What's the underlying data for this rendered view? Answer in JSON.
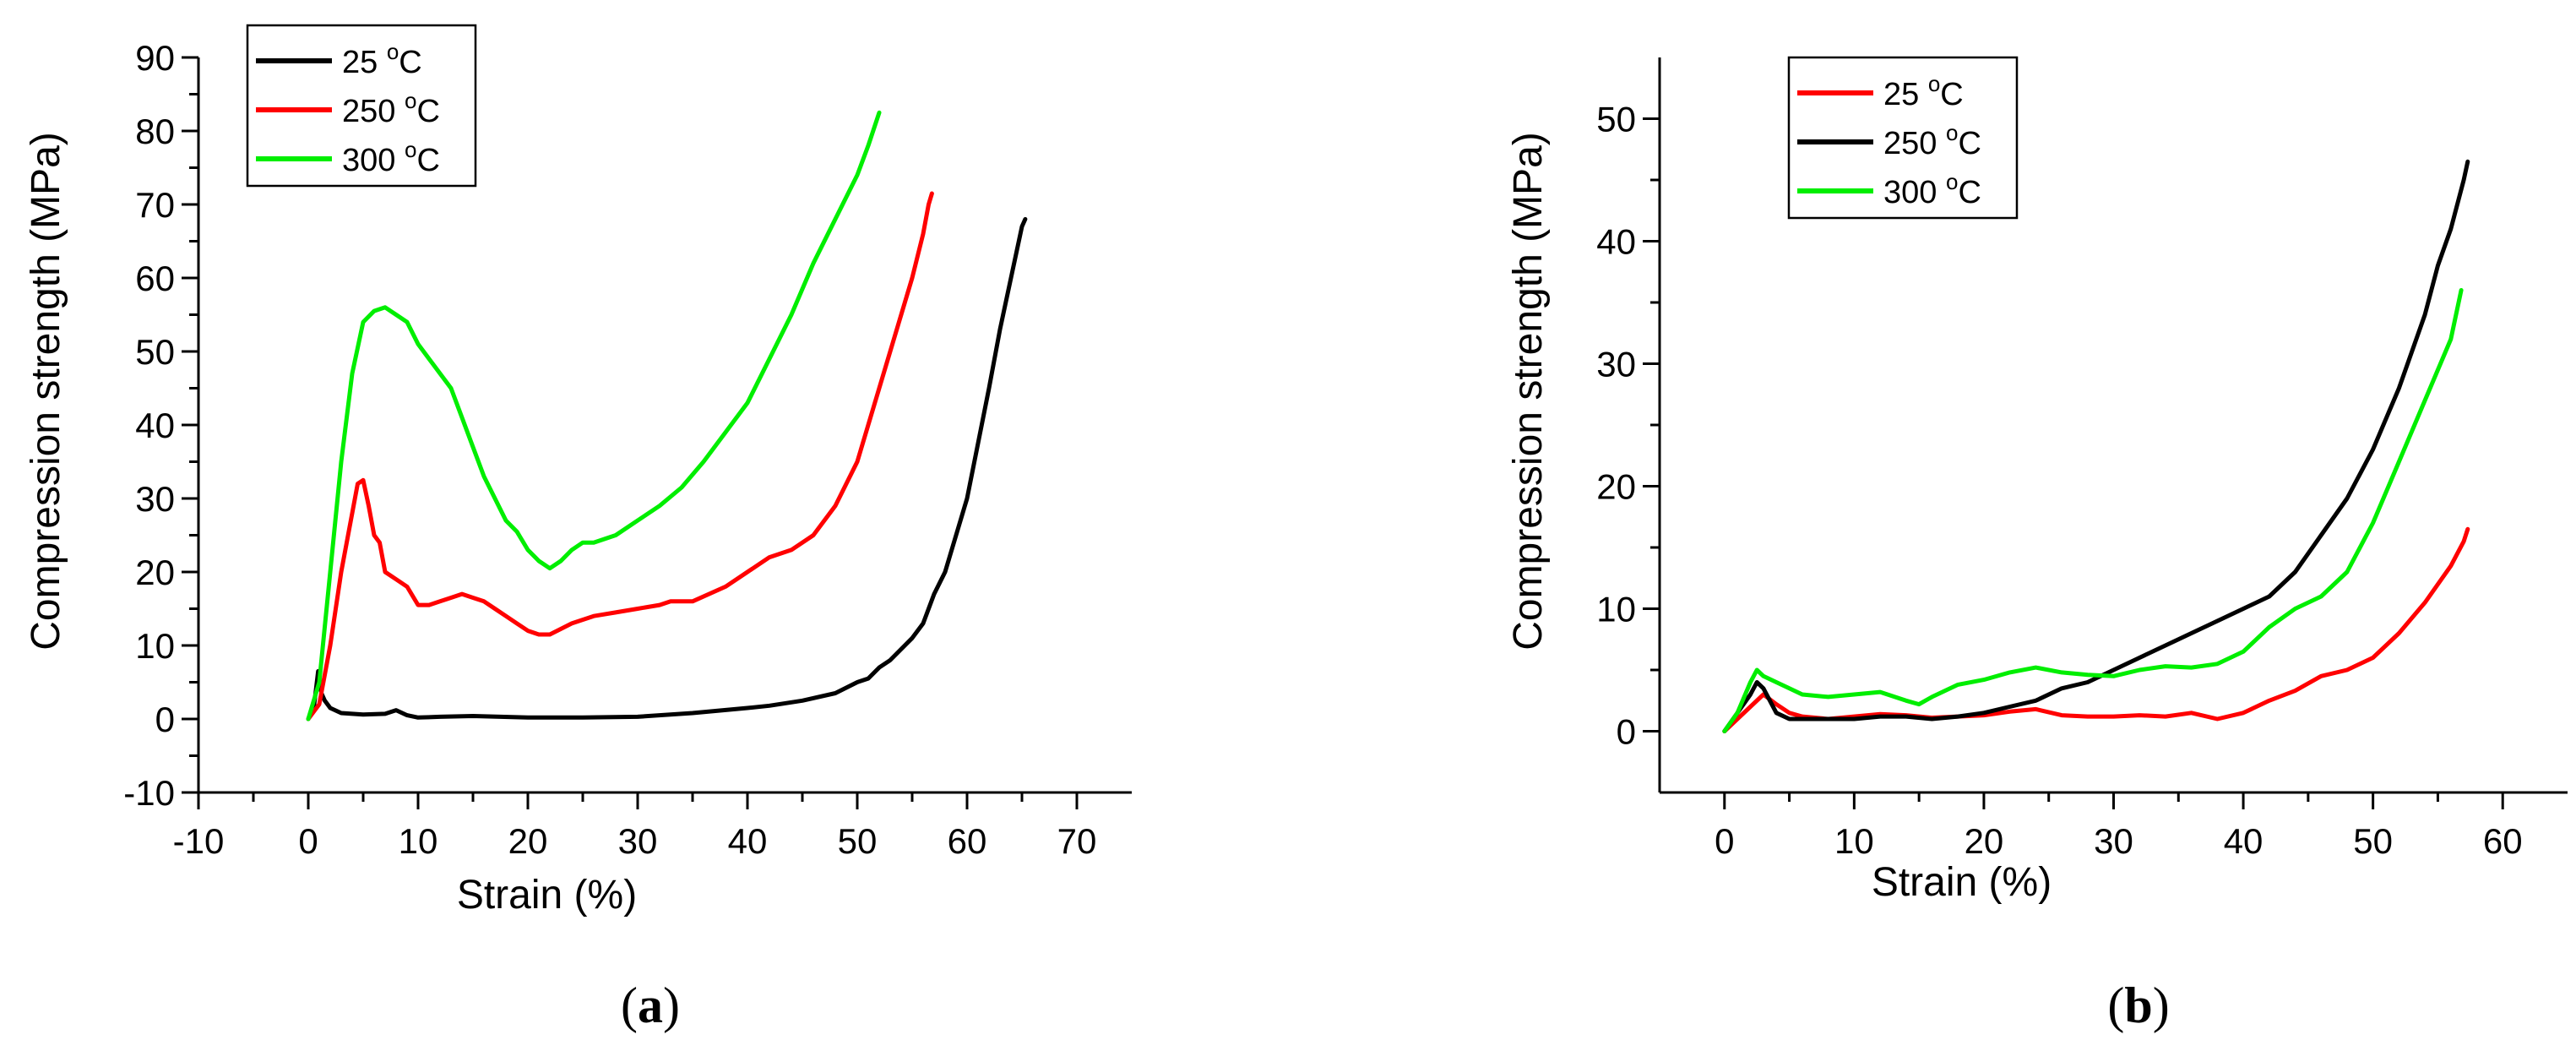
{
  "chart_data": [
    {
      "id": "a",
      "type": "line",
      "caption": "a",
      "xlabel": "Strain (%)",
      "ylabel": "Compression strength (MPa)",
      "xlim": [
        -10,
        75
      ],
      "ylim": [
        -10,
        90
      ],
      "xticks": [
        -10,
        0,
        10,
        20,
        30,
        40,
        50,
        60,
        70
      ],
      "yticks": [
        -10,
        0,
        10,
        20,
        30,
        40,
        50,
        60,
        70,
        80,
        90
      ],
      "legend_position": "top-left",
      "series": [
        {
          "name": "25 °C",
          "label": "25 ",
          "unit": "C",
          "sup": "o",
          "color": "#000000",
          "x": [
            0,
            0.5,
            0.9,
            1.2,
            1.5,
            2,
            3,
            5,
            7,
            8,
            9,
            10,
            12,
            15,
            20,
            25,
            30,
            35,
            40,
            42,
            45,
            48,
            50,
            51,
            52,
            53,
            55,
            56,
            57,
            58,
            60,
            62,
            63,
            64,
            65,
            65.3
          ],
          "y": [
            0,
            1.5,
            6.5,
            3.5,
            2.5,
            1.5,
            0.8,
            0.6,
            0.7,
            1.2,
            0.5,
            0.2,
            0.3,
            0.4,
            0.2,
            0.2,
            0.3,
            0.8,
            1.5,
            1.8,
            2.5,
            3.5,
            5,
            5.5,
            7,
            8,
            11,
            13,
            17,
            20,
            30,
            45,
            53,
            60,
            67,
            68
          ]
        },
        {
          "name": "250 °C",
          "label": "250 ",
          "unit": "C",
          "sup": "o",
          "color": "#ff0000",
          "x": [
            0,
            1,
            2,
            3,
            4,
            4.5,
            5,
            5.5,
            6,
            6.5,
            7,
            8,
            9,
            10,
            11,
            12,
            13,
            14,
            15,
            16,
            17,
            18,
            19,
            20,
            21,
            22,
            24,
            26,
            28,
            30,
            32,
            33,
            35,
            38,
            40,
            42,
            44,
            46,
            48,
            50,
            52,
            54,
            55,
            56,
            56.5,
            56.8
          ],
          "y": [
            0,
            2,
            10,
            20,
            28,
            32,
            32.5,
            29,
            25,
            24,
            20,
            19,
            18,
            15.5,
            15.5,
            16,
            16.5,
            17,
            16.5,
            16,
            15,
            14,
            13,
            12,
            11.5,
            11.5,
            13,
            14,
            14.5,
            15,
            15.5,
            16,
            16,
            18,
            20,
            22,
            23,
            25,
            29,
            35,
            45,
            55,
            60,
            66,
            70,
            71.5
          ]
        },
        {
          "name": "300 °C",
          "label": "300 ",
          "unit": "C",
          "sup": "o",
          "color": "#00ee00",
          "x": [
            0,
            1,
            2,
            3,
            4,
            5,
            6,
            7,
            8,
            9,
            10,
            11,
            12,
            13,
            14,
            15,
            16,
            17,
            18,
            19,
            20,
            21,
            22,
            23,
            24,
            25,
            26,
            28,
            30,
            32,
            34,
            36,
            38,
            40,
            42,
            44,
            46,
            48,
            50,
            51,
            52
          ],
          "y": [
            0,
            5,
            20,
            35,
            47,
            54,
            55.5,
            56,
            55,
            54,
            51,
            49,
            47,
            45,
            41,
            37,
            33,
            30,
            27,
            25.5,
            23,
            21.5,
            20.5,
            21.5,
            23,
            24,
            24,
            25,
            27,
            29,
            31.5,
            35,
            39,
            43,
            49,
            55,
            62,
            68,
            74,
            78,
            82.5
          ]
        }
      ]
    },
    {
      "id": "b",
      "type": "line",
      "caption": "b",
      "xlabel": "Strain (%)",
      "ylabel": "Compression strength (MPa)",
      "xlim": [
        -5,
        65
      ],
      "ylim": [
        -5,
        55
      ],
      "xticks": [
        0,
        10,
        20,
        30,
        40,
        50,
        60
      ],
      "yticks": [
        0,
        10,
        20,
        30,
        40,
        50
      ],
      "legend_position": "top-left",
      "series": [
        {
          "name": "25 °C",
          "label": "25 ",
          "unit": "C",
          "sup": "o",
          "color": "#ff0000",
          "x": [
            0,
            1,
            2,
            3,
            4,
            5,
            6,
            8,
            10,
            12,
            14,
            16,
            18,
            20,
            22,
            24,
            26,
            28,
            30,
            32,
            34,
            36,
            38,
            40,
            42,
            44,
            46,
            48,
            50,
            52,
            54,
            56,
            57,
            57.3
          ],
          "y": [
            0,
            1,
            2,
            3,
            2.2,
            1.5,
            1.2,
            1,
            1.2,
            1.4,
            1.3,
            1.1,
            1.2,
            1.3,
            1.6,
            1.8,
            1.3,
            1.2,
            1.2,
            1.3,
            1.2,
            1.5,
            1.0,
            1.5,
            2.5,
            3.3,
            4.5,
            5,
            6,
            8,
            10.5,
            13.5,
            15.5,
            16.5
          ]
        },
        {
          "name": "250 °C",
          "label": "250 ",
          "unit": "C",
          "sup": "o",
          "color": "#000000",
          "x": [
            0,
            1,
            2,
            2.5,
            3,
            4,
            5,
            6,
            8,
            10,
            12,
            14,
            16,
            18,
            20,
            22,
            24,
            26,
            28,
            30,
            32,
            34,
            36,
            38,
            40,
            42,
            44,
            46,
            48,
            50,
            52,
            54,
            55,
            56,
            57,
            57.3
          ],
          "y": [
            0,
            1.5,
            3,
            4,
            3.5,
            1.5,
            1,
            1,
            1,
            1,
            1.2,
            1.2,
            1,
            1.2,
            1.5,
            2,
            2.5,
            3.5,
            4,
            5,
            6,
            7,
            8,
            9,
            10,
            11,
            13,
            16,
            19,
            23,
            28,
            34,
            38,
            41,
            45,
            46.5
          ]
        },
        {
          "name": "300 °C",
          "label": "300 ",
          "unit": "C",
          "sup": "o",
          "color": "#00ee00",
          "x": [
            0,
            1,
            2,
            2.5,
            3,
            4,
            5,
            6,
            8,
            10,
            12,
            14,
            15,
            16,
            18,
            20,
            22,
            24,
            26,
            28,
            30,
            32,
            34,
            36,
            38,
            40,
            42,
            44,
            46,
            48,
            50,
            52,
            54,
            56,
            56.8
          ],
          "y": [
            0,
            1.5,
            4,
            5,
            4.5,
            4,
            3.5,
            3,
            2.8,
            3,
            3.2,
            2.5,
            2.2,
            2.8,
            3.8,
            4.2,
            4.8,
            5.2,
            4.8,
            4.6,
            4.5,
            5,
            5.3,
            5.2,
            5.5,
            6.5,
            8.5,
            10,
            11,
            13,
            17,
            22,
            27,
            32,
            36
          ]
        }
      ]
    }
  ]
}
